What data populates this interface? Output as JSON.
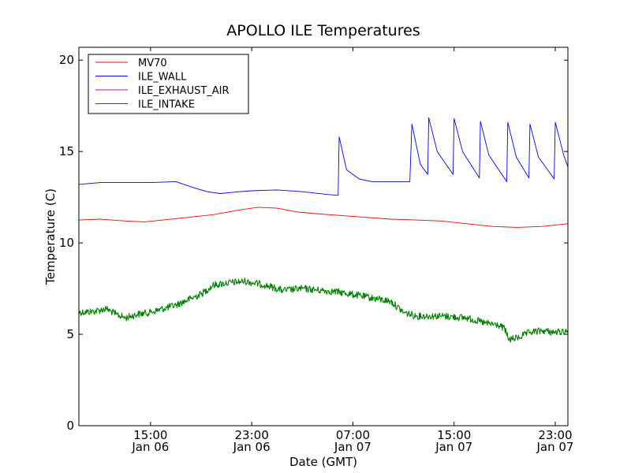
{
  "chart_data": {
    "type": "line",
    "title": "APOLLO ILE Temperatures",
    "xlabel": "Date (GMT)",
    "ylabel": "Temperature (C)",
    "xlim": [
      "2014-01-06T09:20",
      "2014-01-08T00:00"
    ],
    "ylim": [
      0,
      20.7
    ],
    "grid": false,
    "legend_position": "top-left",
    "x_ticks": [
      {
        "x": "2014-01-06T15:00",
        "line1": "15:00",
        "line2": "Jan 06"
      },
      {
        "x": "2014-01-06T23:00",
        "line1": "23:00",
        "line2": "Jan 06"
      },
      {
        "x": "2014-01-07T07:00",
        "line1": "07:00",
        "line2": "Jan 07"
      },
      {
        "x": "2014-01-07T15:00",
        "line1": "15:00",
        "line2": "Jan 07"
      },
      {
        "x": "2014-01-07T23:00",
        "line1": "23:00",
        "line2": "Jan 07"
      }
    ],
    "y_ticks": [
      0,
      5,
      10,
      15,
      20
    ],
    "series": [
      {
        "name": "MV70",
        "color": "#ff0000",
        "x": [
          "2014-01-06T09:20",
          "2014-01-06T11:00",
          "2014-01-06T13:00",
          "2014-01-06T14:30",
          "2014-01-06T16:00",
          "2014-01-06T18:00",
          "2014-01-06T20:00",
          "2014-01-06T22:00",
          "2014-01-06T23:30",
          "2014-01-07T01:00",
          "2014-01-07T02:30",
          "2014-01-07T04:00",
          "2014-01-07T06:00",
          "2014-01-07T08:00",
          "2014-01-07T10:00",
          "2014-01-07T12:00",
          "2014-01-07T14:00",
          "2014-01-07T16:00",
          "2014-01-07T18:00",
          "2014-01-07T20:00",
          "2014-01-07T22:00",
          "2014-01-08T00:00"
        ],
        "y": [
          11.25,
          11.3,
          11.2,
          11.15,
          11.25,
          11.4,
          11.55,
          11.8,
          11.95,
          11.9,
          11.7,
          11.6,
          11.5,
          11.4,
          11.3,
          11.25,
          11.2,
          11.05,
          10.9,
          10.85,
          10.9,
          11.05
        ]
      },
      {
        "name": "ILE_WALL",
        "color": "#0000ff",
        "x": [
          "2014-01-06T09:20",
          "2014-01-06T11:00",
          "2014-01-06T13:00",
          "2014-01-06T15:00",
          "2014-01-06T17:00",
          "2014-01-06T18:30",
          "2014-01-06T19:30",
          "2014-01-06T20:30",
          "2014-01-06T22:00",
          "2014-01-06T23:00",
          "2014-01-07T01:00",
          "2014-01-07T03:00",
          "2014-01-07T05:00",
          "2014-01-07T05:50",
          "2014-01-07T05:55",
          "2014-01-07T06:30",
          "2014-01-07T07:30",
          "2014-01-07T08:30",
          "2014-01-07T10:00",
          "2014-01-07T11:30",
          "2014-01-07T11:40",
          "2014-01-07T12:20",
          "2014-01-07T12:55",
          "2014-01-07T13:00",
          "2014-01-07T13:40",
          "2014-01-07T14:55",
          "2014-01-07T15:00",
          "2014-01-07T15:40",
          "2014-01-07T17:00",
          "2014-01-07T17:05",
          "2014-01-07T17:45",
          "2014-01-07T19:10",
          "2014-01-07T19:15",
          "2014-01-07T19:55",
          "2014-01-07T20:55",
          "2014-01-07T21:00",
          "2014-01-07T21:40",
          "2014-01-07T22:55",
          "2014-01-07T23:00",
          "2014-01-07T23:40",
          "2014-01-08T00:00"
        ],
        "y": [
          13.2,
          13.3,
          13.3,
          13.3,
          13.35,
          13.0,
          12.8,
          12.7,
          12.8,
          12.85,
          12.9,
          12.8,
          12.65,
          12.6,
          15.8,
          14.0,
          13.5,
          13.35,
          13.35,
          13.35,
          16.5,
          14.3,
          13.75,
          16.85,
          15.0,
          13.75,
          16.8,
          15.0,
          13.55,
          16.65,
          14.8,
          13.35,
          16.6,
          14.7,
          13.55,
          16.5,
          14.7,
          13.5,
          16.6,
          14.8,
          14.15
        ]
      },
      {
        "name": "ILE_EXHAUST_AIR",
        "color": "#bf00bf",
        "x": [],
        "y": []
      },
      {
        "name": "ILE_INTAKE",
        "color": "#008000",
        "x": [
          "2014-01-06T09:20",
          "2014-01-06T10:30",
          "2014-01-06T11:30",
          "2014-01-06T12:15",
          "2014-01-06T13:00",
          "2014-01-06T14:00",
          "2014-01-06T15:00",
          "2014-01-06T17:00",
          "2014-01-06T19:00",
          "2014-01-06T20:00",
          "2014-01-06T21:00",
          "2014-01-06T22:30",
          "2014-01-07T00:00",
          "2014-01-07T01:30",
          "2014-01-07T03:00",
          "2014-01-07T04:30",
          "2014-01-07T06:00",
          "2014-01-07T08:00",
          "2014-01-07T10:00",
          "2014-01-07T11:00",
          "2014-01-07T12:00",
          "2014-01-07T14:00",
          "2014-01-07T16:00",
          "2014-01-07T17:30",
          "2014-01-07T18:30",
          "2014-01-07T19:00",
          "2014-01-07T19:20",
          "2014-01-07T20:00",
          "2014-01-07T21:00",
          "2014-01-07T22:00",
          "2014-01-07T23:00",
          "2014-01-08T00:00"
        ],
        "y": [
          6.2,
          6.25,
          6.4,
          6.1,
          5.9,
          6.1,
          6.2,
          6.6,
          7.2,
          7.7,
          7.8,
          7.9,
          7.7,
          7.4,
          7.5,
          7.4,
          7.3,
          7.05,
          6.8,
          6.2,
          6.0,
          6.0,
          5.9,
          5.6,
          5.5,
          5.3,
          4.7,
          4.8,
          5.1,
          5.2,
          5.1,
          5.2
        ]
      }
    ]
  }
}
